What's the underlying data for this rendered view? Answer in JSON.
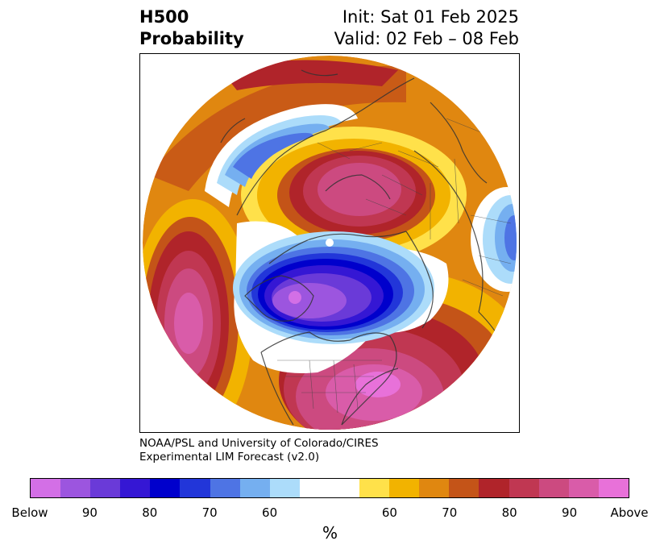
{
  "title": {
    "left_line1": "H500",
    "left_line2": "Probability",
    "right_line1": "Init: Sat 01 Feb 2025",
    "right_line2": "Valid: 02 Feb – 08 Feb"
  },
  "credit": {
    "line1": "NOAA/PSL and University of Colorado/CIRES",
    "line2": "Experimental LIM Forecast (v2.0)"
  },
  "colorbar": {
    "colors": [
      "#d36fe6",
      "#9c55df",
      "#6a3ad8",
      "#3517d4",
      "#0000cc",
      "#2236d9",
      "#4e74e4",
      "#75aff0",
      "#acdcfa",
      "#ffffff",
      "#ffffff",
      "#ffe14a",
      "#f2b300",
      "#e08710",
      "#c45418",
      "#b0242a",
      "#c03752",
      "#cc4a80",
      "#d95ca9",
      "#e871d9"
    ],
    "tick_labels": [
      "Below",
      "90",
      "80",
      "70",
      "60",
      "60",
      "70",
      "80",
      "90",
      "Above"
    ],
    "unit": "%"
  }
}
